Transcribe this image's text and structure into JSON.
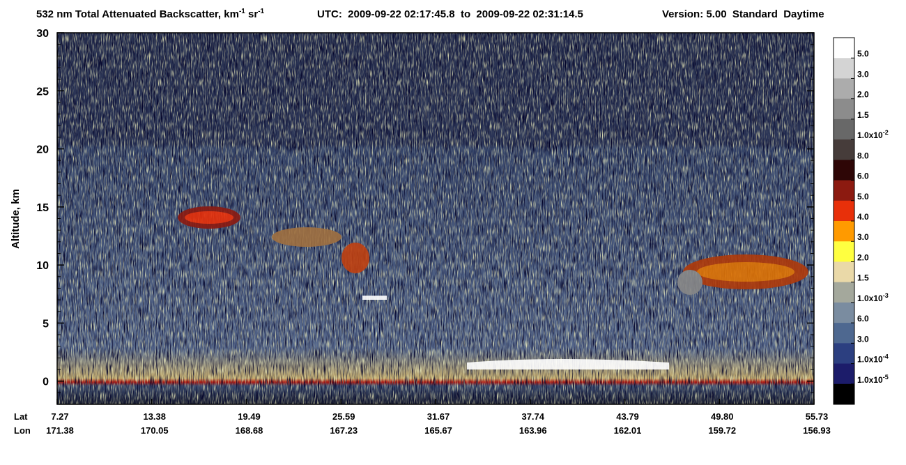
{
  "chart_data": {
    "type": "heatmap",
    "title": {
      "product": "532 nm Total Attenuated Backscatter, km",
      "product_sup1": "-1",
      "unit2": " sr",
      "product_sup2": "-1",
      "utc": "UTC:  2009-09-22 02:17:45.8  to  2009-09-22 02:31:14.5",
      "version": "Version: 5.00  Standard  Daytime"
    },
    "y_label": "Altitude, km",
    "ylim": [
      -2,
      30
    ],
    "yticks": [
      0,
      5,
      10,
      15,
      20,
      25,
      30
    ],
    "x_axis": {
      "lat_label": "Lat",
      "lon_label": "Lon",
      "lat": [
        "7.27",
        "13.38",
        "19.49",
        "25.59",
        "31.67",
        "37.74",
        "43.79",
        "49.80",
        "55.73"
      ],
      "lon": [
        "171.38",
        "170.05",
        "168.68",
        "167.23",
        "165.67",
        "163.96",
        "162.01",
        "159.72",
        "156.93"
      ]
    },
    "colorbar": {
      "colors": [
        "#ffffff",
        "#d4d4d4",
        "#acacac",
        "#8c8c8c",
        "#686868",
        "#463c3a",
        "#2e0606",
        "#8c1a10",
        "#e8300a",
        "#ff9a00",
        "#ffff40",
        "#ead9a8",
        "#a4a89c",
        "#7a8ca0",
        "#4e6890",
        "#2c3f80",
        "#1c1c6a",
        "#000000"
      ],
      "labels": [
        {
          "text": "5.0"
        },
        {
          "text": "3.0"
        },
        {
          "text": "2.0"
        },
        {
          "text": "1.5"
        },
        {
          "text": "1.0x10",
          "sup": "-2"
        },
        {
          "text": "8.0"
        },
        {
          "text": "6.0"
        },
        {
          "text": "5.0"
        },
        {
          "text": "4.0"
        },
        {
          "text": "3.0"
        },
        {
          "text": "2.0"
        },
        {
          "text": "1.5"
        },
        {
          "text": "1.0x10",
          "sup": "-3"
        },
        {
          "text": "6.0"
        },
        {
          "text": "3.0"
        },
        {
          "text": "1.0x10",
          "sup": "-4"
        },
        {
          "text": "1.0x10",
          "sup": "-5"
        }
      ]
    }
  }
}
